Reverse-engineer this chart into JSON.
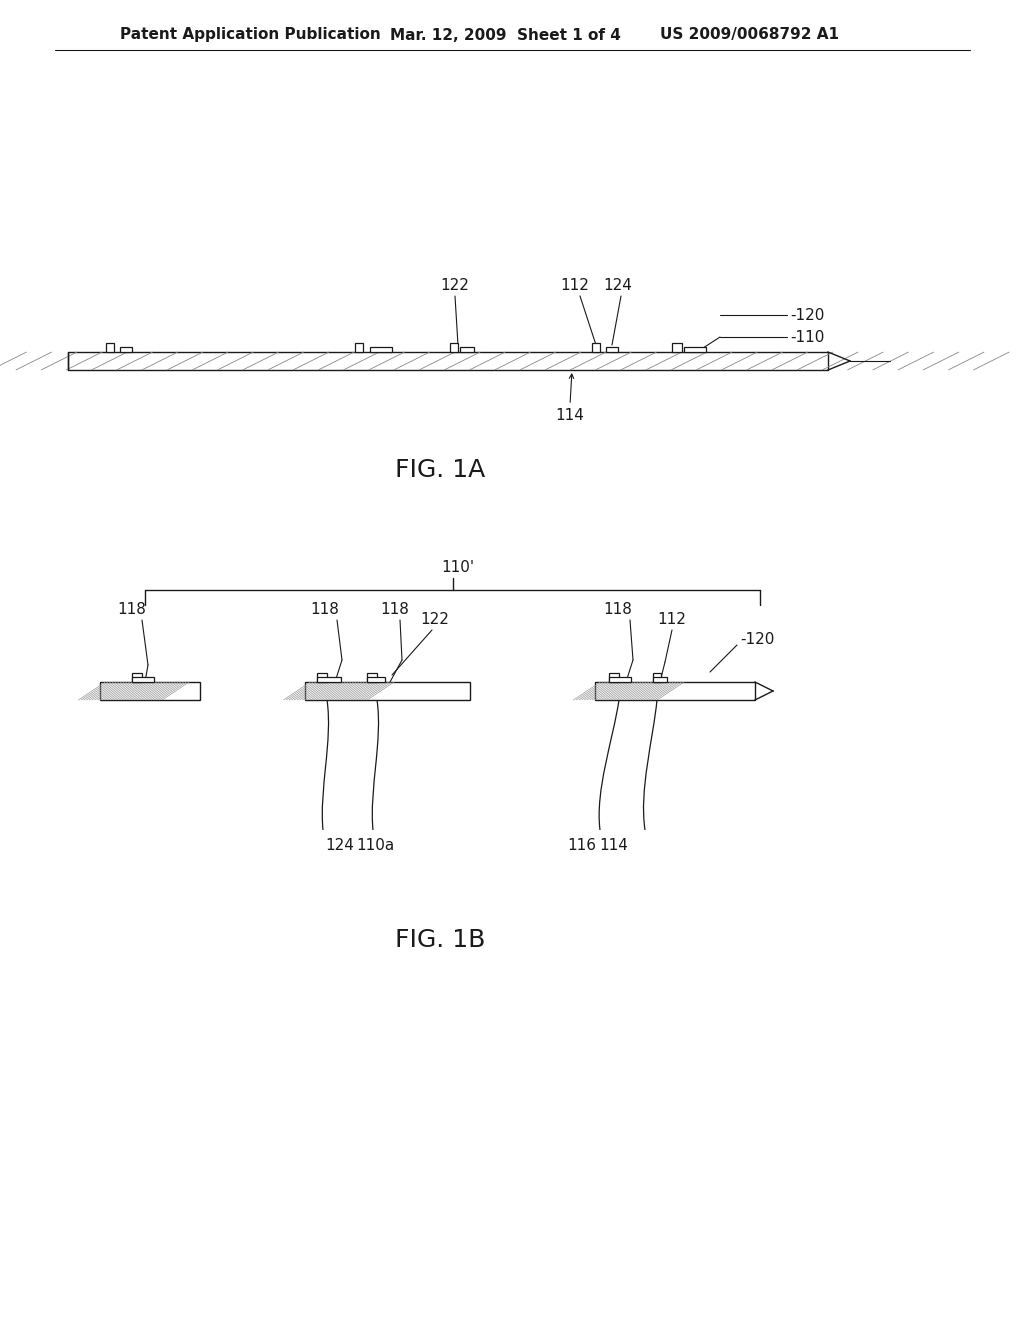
{
  "bg_color": "#ffffff",
  "header_left": "Patent Application Publication",
  "header_mid": "Mar. 12, 2009  Sheet 1 of 4",
  "header_right": "US 2009/0068792 A1",
  "fig1a_label": "FIG. 1A",
  "fig1b_label": "FIG. 1B",
  "black": "#1a1a1a",
  "hatch_color": "#888888",
  "label_fontsize": 11,
  "figlabel_fontsize": 18
}
